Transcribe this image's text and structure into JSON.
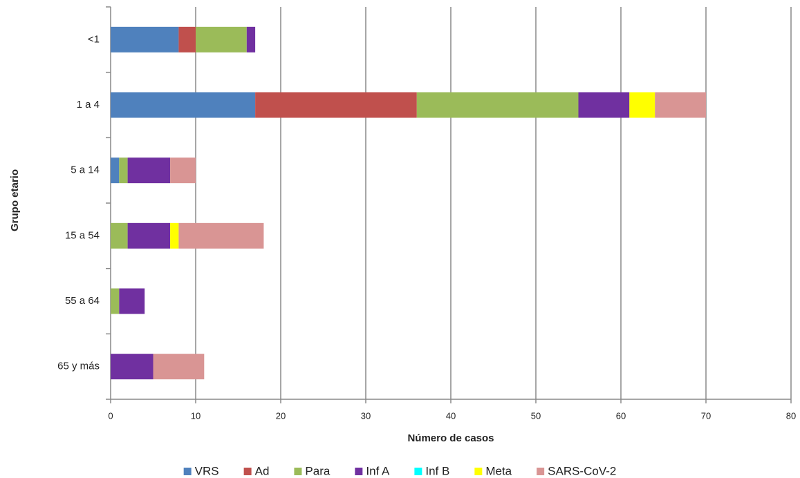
{
  "chart_data": {
    "type": "stacked-horizontal-bar",
    "x_label": "Número de casos",
    "y_label": "Grupo etario",
    "categories": [
      "<1",
      "1 a 4",
      "5 a 14",
      "15 a 54",
      "55 a 64",
      "65 y más"
    ],
    "series": [
      {
        "name": "VRS",
        "color": "#4f81bd",
        "values": [
          8,
          17,
          1,
          0,
          0,
          0
        ]
      },
      {
        "name": "Ad",
        "color": "#c0504d",
        "values": [
          2,
          19,
          0,
          0,
          0,
          0
        ]
      },
      {
        "name": "Para",
        "color": "#9bbb59",
        "values": [
          6,
          19,
          1,
          2,
          1,
          0
        ]
      },
      {
        "name": "Inf A",
        "color": "#7030a0",
        "values": [
          1,
          6,
          5,
          5,
          3,
          5
        ]
      },
      {
        "name": "Inf B",
        "color": "#00ffff",
        "values": [
          0,
          0,
          0,
          0,
          0,
          0
        ]
      },
      {
        "name": "Meta",
        "color": "#ffff00",
        "values": [
          0,
          3,
          0,
          1,
          0,
          0
        ]
      },
      {
        "name": "SARS-CoV-2",
        "color": "#d99594",
        "values": [
          0,
          6,
          3,
          10,
          0,
          6
        ]
      }
    ],
    "xlim": [
      0,
      80
    ],
    "xticks": [
      0,
      10,
      20,
      30,
      40,
      50,
      60,
      70,
      80
    ],
    "grid": true,
    "legend": "bottom"
  }
}
